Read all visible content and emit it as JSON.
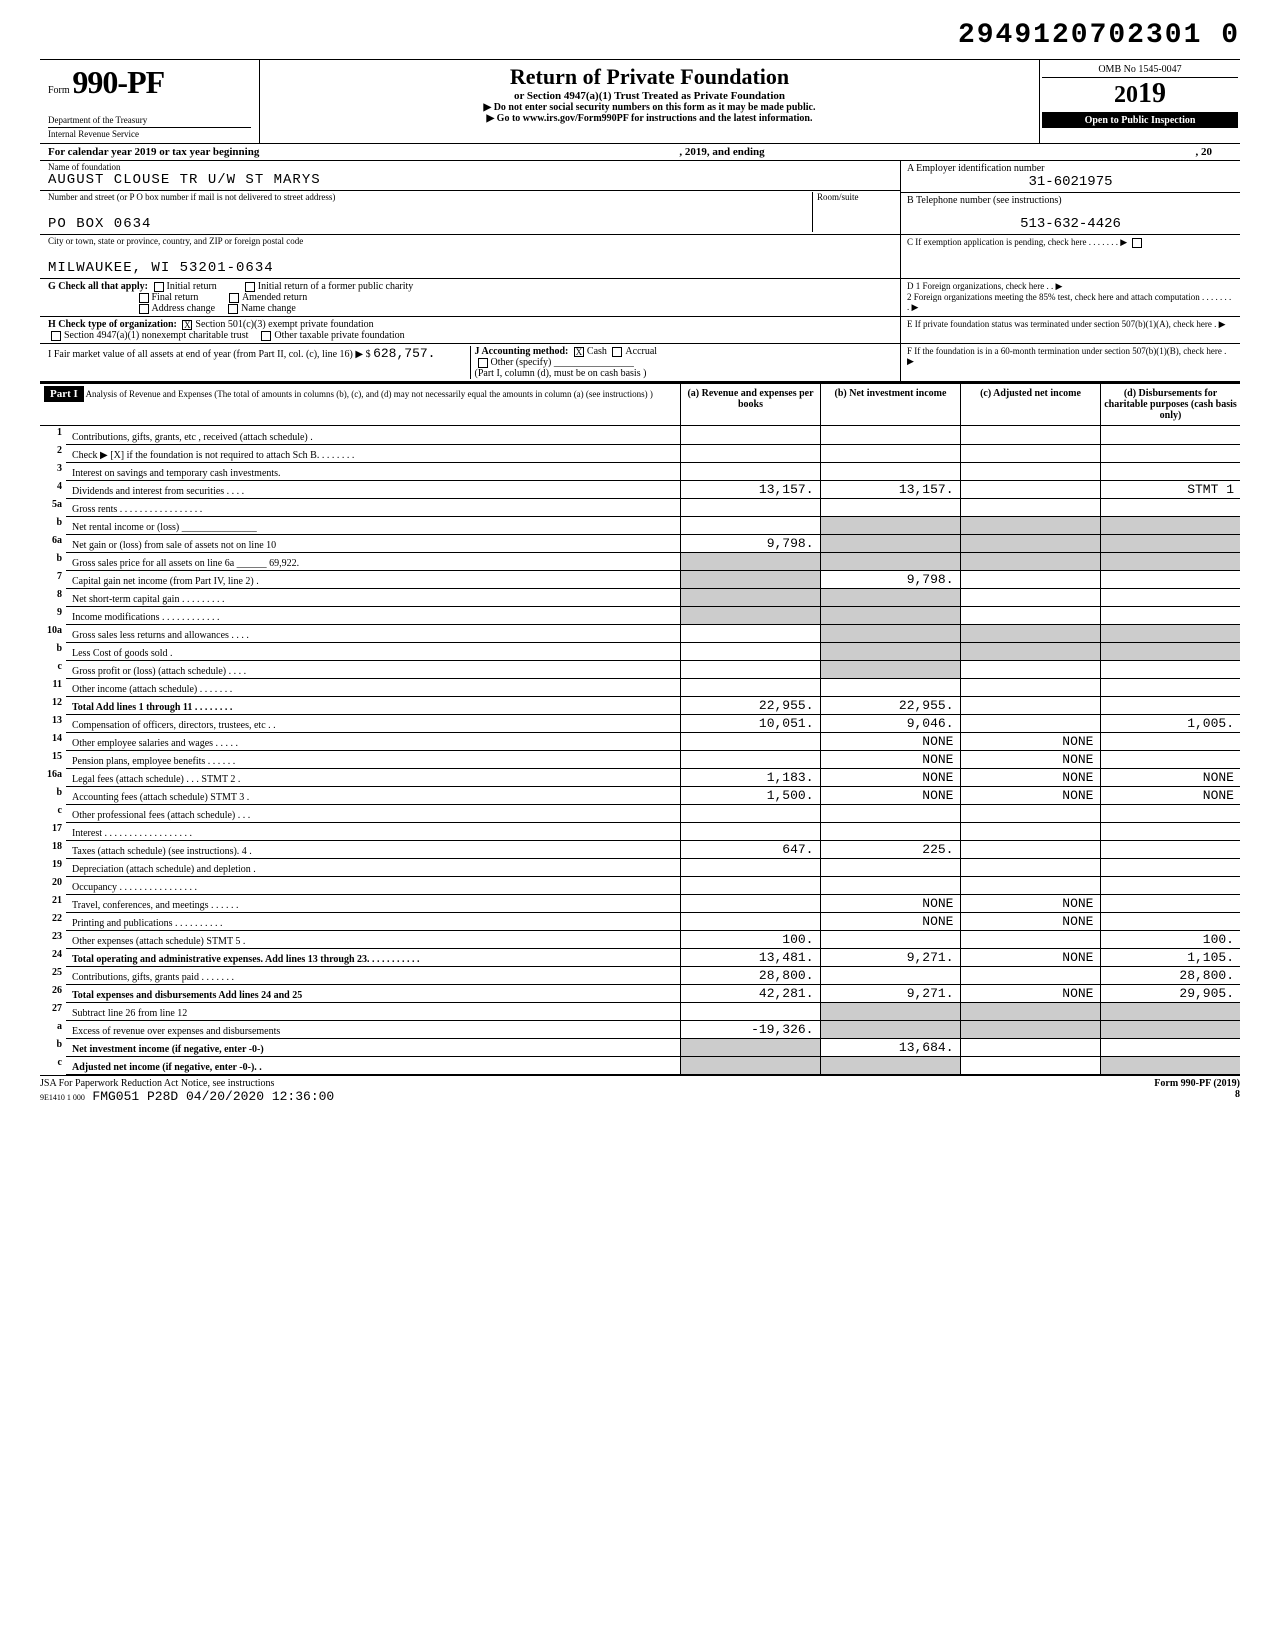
{
  "doc_number": "2949120702301 0",
  "header": {
    "form_prefix": "Form",
    "form_number": "990-PF",
    "dept": "Department of the Treasury",
    "irs": "Internal Revenue Service",
    "title": "Return of Private Foundation",
    "subtitle": "or Section 4947(a)(1) Trust Treated as Private Foundation",
    "instr1": "▶ Do not enter social security numbers on this form as it may be made public.",
    "instr2": "▶ Go to www.irs.gov/Form990PF for instructions and the latest information.",
    "omb": "OMB No 1545-0047",
    "year_prefix": "20",
    "year_big": "19",
    "open": "Open to Public Inspection"
  },
  "cal": {
    "text1": "For calendar year 2019 or tax year beginning",
    "text2": ", 2019, and ending",
    "text3": ", 20"
  },
  "info": {
    "name_lbl": "Name of foundation",
    "name_val": "AUGUST CLOUSE TR U/W ST MARYS",
    "addr_lbl": "Number and street (or P O  box number if mail is not delivered to street address)",
    "addr_val": "PO BOX 0634",
    "room_lbl": "Room/suite",
    "city_lbl": "City or town, state or province, country, and ZIP or foreign postal code",
    "city_val": "MILWAUKEE, WI 53201-0634",
    "ein_lbl": "A  Employer identification number",
    "ein_val": "31-6021975",
    "tel_lbl": "B  Telephone number (see instructions)",
    "tel_val": "513-632-4426",
    "c_lbl": "C  If exemption application is pending, check here . . . . . . . ▶"
  },
  "checks": {
    "g": "G Check all that apply:",
    "g1": "Initial return",
    "g2": "Initial return of a former public charity",
    "g3": "Final return",
    "g4": "Amended return",
    "g5": "Address change",
    "g6": "Name change",
    "h": "H Check type of organization:",
    "h1": "Section 501(c)(3) exempt private foundation",
    "h2": "Section 4947(a)(1) nonexempt charitable trust",
    "h3": "Other taxable private foundation",
    "i": "I  Fair market value of all assets at end of year (from Part II, col. (c), line 16) ▶ $",
    "i_val": "628,757.",
    "j": "J Accounting method:",
    "j1": "Cash",
    "j2": "Accrual",
    "j3": "Other (specify)",
    "j_note": "(Part I, column (d), must be on cash basis )",
    "d1": "D  1 Foreign organizations, check here . . ▶",
    "d2": "2 Foreign organizations meeting the 85% test, check here and attach computation . . . . . . . . ▶",
    "e": "E  If private foundation status was terminated under section 507(b)(1)(A), check here . ▶",
    "f": "F  If the foundation is in a 60-month termination under section 507(b)(1)(B), check here . ▶"
  },
  "part1": {
    "label": "Part I",
    "desc": "Analysis of Revenue and Expenses (The total of amounts in columns (b), (c), and (d) may not necessarily equal the amounts in column (a) (see instructions) )",
    "col_a": "(a) Revenue and expenses per books",
    "col_b": "(b) Net investment income",
    "col_c": "(c) Adjusted net income",
    "col_d": "(d) Disbursements for charitable purposes (cash basis only)"
  },
  "rows": [
    {
      "n": "1",
      "label": "Contributions, gifts, grants, etc , received (attach schedule) .",
      "a": "",
      "b": "",
      "c": "",
      "d": ""
    },
    {
      "n": "2",
      "label": "Check ▶ [X] if the foundation is not required to attach Sch B. . . . . . . .",
      "a": "",
      "b": "",
      "c": "",
      "d": ""
    },
    {
      "n": "3",
      "label": "Interest on savings and temporary cash investments.",
      "a": "",
      "b": "",
      "c": "",
      "d": ""
    },
    {
      "n": "4",
      "label": "Dividends and interest from securities . . . .",
      "a": "13,157.",
      "b": "13,157.",
      "c": "",
      "d": "STMT 1"
    },
    {
      "n": "5a",
      "label": "Gross rents . . . . . . . . . . . . . . . . .",
      "a": "",
      "b": "",
      "c": "",
      "d": ""
    },
    {
      "n": "b",
      "label": "Net rental income or (loss) _______________",
      "a": "",
      "b": "",
      "c": "",
      "d": "",
      "shade_bcd": true
    },
    {
      "n": "6a",
      "label": "Net gain or (loss) from sale of assets not on line 10",
      "a": "9,798.",
      "b": "",
      "c": "",
      "d": "",
      "shade_bcd": true
    },
    {
      "n": "b",
      "label": "Gross sales price for all assets on line 6a ______ 69,922.",
      "a": "",
      "b": "",
      "c": "",
      "d": "",
      "shade_all": true
    },
    {
      "n": "7",
      "label": "Capital gain net income (from Part IV, line 2) .",
      "a": "",
      "b": "9,798.",
      "c": "",
      "d": "",
      "shade_a": true
    },
    {
      "n": "8",
      "label": "Net short-term capital gain . . . . . . . . .",
      "a": "",
      "b": "",
      "c": "",
      "d": "",
      "shade_ab": true
    },
    {
      "n": "9",
      "label": "Income modifications . . . . . . . . . . . .",
      "a": "",
      "b": "",
      "c": "",
      "d": "",
      "shade_ab": true
    },
    {
      "n": "10a",
      "label": "Gross sales less returns and allowances . . . .",
      "a": "",
      "b": "",
      "c": "",
      "d": "",
      "shade_bcd": true
    },
    {
      "n": "b",
      "label": "Less  Cost of goods sold  .",
      "a": "",
      "b": "",
      "c": "",
      "d": "",
      "shade_bcd": true
    },
    {
      "n": "c",
      "label": "Gross profit or (loss) (attach schedule) . . . .",
      "a": "",
      "b": "",
      "c": "",
      "d": "",
      "shade_b": true
    },
    {
      "n": "11",
      "label": "Other income (attach schedule) . . . . . . .",
      "a": "",
      "b": "",
      "c": "",
      "d": ""
    },
    {
      "n": "12",
      "label": "Total Add lines 1 through 11 . . . . . . . .",
      "a": "22,955.",
      "b": "22,955.",
      "c": "",
      "d": "",
      "bold": true
    },
    {
      "n": "13",
      "label": "Compensation of officers, directors, trustees, etc . .",
      "a": "10,051.",
      "b": "9,046.",
      "c": "",
      "d": "1,005."
    },
    {
      "n": "14",
      "label": "Other employee salaries and wages . . . . .",
      "a": "",
      "b": "NONE",
      "c": "NONE",
      "d": ""
    },
    {
      "n": "15",
      "label": "Pension plans, employee benefits . . . . . .",
      "a": "",
      "b": "NONE",
      "c": "NONE",
      "d": ""
    },
    {
      "n": "16a",
      "label": "Legal fees (attach schedule) . . . STMT 2 .",
      "a": "1,183.",
      "b": "NONE",
      "c": "NONE",
      "d": "NONE"
    },
    {
      "n": "b",
      "label": "Accounting fees (attach schedule) STMT 3 .",
      "a": "1,500.",
      "b": "NONE",
      "c": "NONE",
      "d": "NONE"
    },
    {
      "n": "c",
      "label": "Other professional fees (attach schedule) . . .",
      "a": "",
      "b": "",
      "c": "",
      "d": ""
    },
    {
      "n": "17",
      "label": "Interest . . . . . . . . . . . . . . . . . .",
      "a": "",
      "b": "",
      "c": "",
      "d": ""
    },
    {
      "n": "18",
      "label": "Taxes (attach schedule) (see instructions). 4 .",
      "a": "647.",
      "b": "225.",
      "c": "",
      "d": ""
    },
    {
      "n": "19",
      "label": "Depreciation (attach schedule) and depletion .",
      "a": "",
      "b": "",
      "c": "",
      "d": ""
    },
    {
      "n": "20",
      "label": "Occupancy . . . . . . . . . . . . . . . .",
      "a": "",
      "b": "",
      "c": "",
      "d": ""
    },
    {
      "n": "21",
      "label": "Travel, conferences, and meetings . . . . . .",
      "a": "",
      "b": "NONE",
      "c": "NONE",
      "d": ""
    },
    {
      "n": "22",
      "label": "Printing and publications . . . . . . . . . .",
      "a": "",
      "b": "NONE",
      "c": "NONE",
      "d": ""
    },
    {
      "n": "23",
      "label": "Other expenses (attach schedule) STMT 5 .",
      "a": "100.",
      "b": "",
      "c": "",
      "d": "100."
    },
    {
      "n": "24",
      "label": "Total operating and administrative expenses. Add lines 13 through 23. . . . . . . . . . .",
      "a": "13,481.",
      "b": "9,271.",
      "c": "NONE",
      "d": "1,105.",
      "bold": true
    },
    {
      "n": "25",
      "label": "Contributions, gifts, grants paid . . . . . . .",
      "a": "28,800.",
      "b": "",
      "c": "",
      "d": "28,800."
    },
    {
      "n": "26",
      "label": "Total expenses and disbursements Add lines 24 and 25",
      "a": "42,281.",
      "b": "9,271.",
      "c": "NONE",
      "d": "29,905.",
      "bold": true
    },
    {
      "n": "27",
      "label": "Subtract line 26 from line 12",
      "a": "",
      "b": "",
      "c": "",
      "d": "",
      "shade_bcd": true
    },
    {
      "n": "a",
      "label": "Excess of revenue over expenses and disbursements",
      "a": "-19,326.",
      "b": "",
      "c": "",
      "d": "",
      "shade_bcd": true
    },
    {
      "n": "b",
      "label": "Net investment income (if negative, enter -0-)",
      "a": "",
      "b": "13,684.",
      "c": "",
      "d": "",
      "shade_a": true,
      "bold": true
    },
    {
      "n": "c",
      "label": "Adjusted net income (if negative, enter -0-). .",
      "a": "",
      "b": "",
      "c": "",
      "d": "",
      "shade_abd": true,
      "bold": true
    }
  ],
  "footer": {
    "left": "JSA For Paperwork Reduction Act Notice, see instructions",
    "id": "9E1410 1 000",
    "stamp": "FMG051 P28D 04/20/2020 12:36:00",
    "right": "Form 990-PF (2019)",
    "page": "8"
  }
}
